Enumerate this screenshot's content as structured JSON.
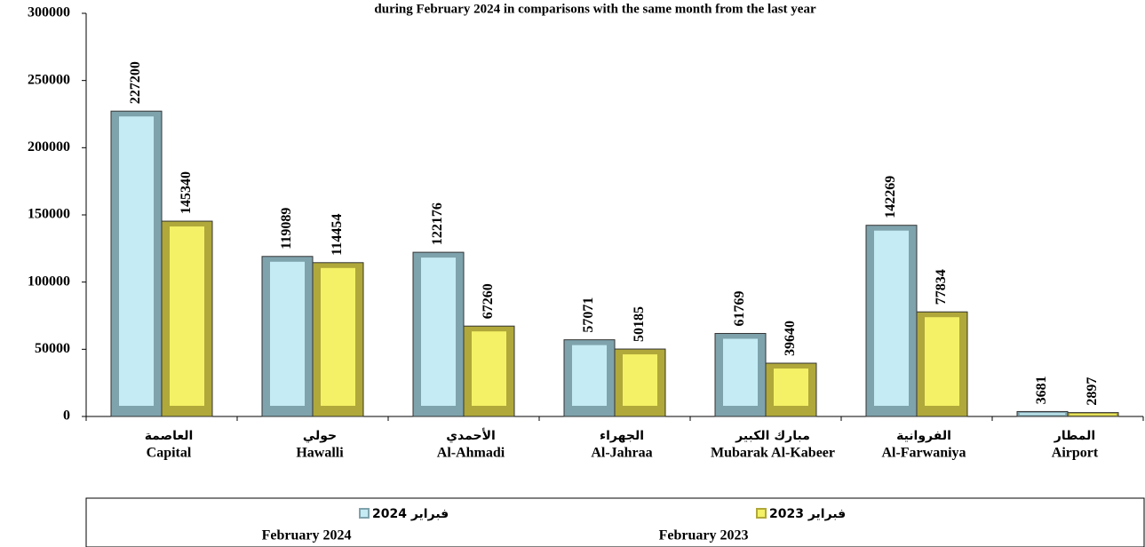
{
  "chart_data": {
    "type": "bar",
    "title": "during February 2024 in comparisons with the same month from the last year",
    "categories": [
      "Capital",
      "Hawalli",
      "Al-Ahmadi",
      "Al-Jahraa",
      "Mubarak Al-Kabeer",
      "Al-Farwaniya",
      "Airport"
    ],
    "categories_ar": [
      "العاصمة",
      "حولي",
      "الأحمدي",
      "الجهراء",
      "مبارك الكبير",
      "الفروانية",
      "المطار"
    ],
    "series": [
      {
        "name": "February 2024",
        "name_ar": "فبراير 2024",
        "color": "#c5ecf5",
        "edge": "#7fa3ad",
        "values": [
          227200,
          119089,
          122176,
          57071,
          61769,
          142269,
          3681
        ]
      },
      {
        "name": "February 2023",
        "name_ar": "فبراير 2023",
        "color": "#f4f166",
        "edge": "#b0a83a",
        "values": [
          145340,
          114454,
          67260,
          50185,
          39640,
          77834,
          2897
        ]
      }
    ],
    "ylim": [
      0,
      300000
    ],
    "yticks": [
      0,
      50000,
      100000,
      150000,
      200000,
      250000,
      300000
    ],
    "grid": false
  }
}
